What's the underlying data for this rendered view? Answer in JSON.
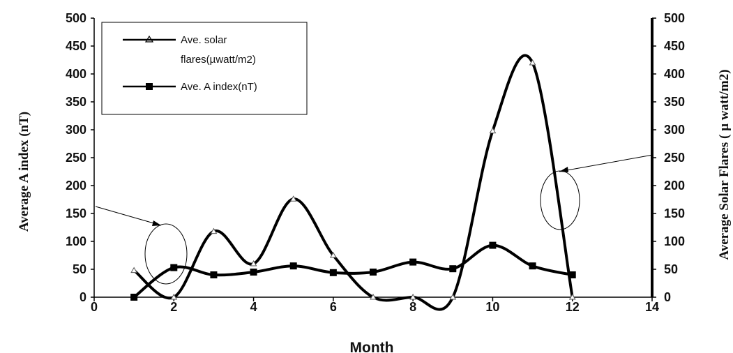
{
  "chart_data": {
    "type": "line",
    "title": "",
    "xlabel": "Month",
    "ylabel_left": "Average A index (nT)",
    "ylabel_right": "Average Solar Flares ( µ watt/m2)",
    "xlim": [
      0,
      14
    ],
    "ylim_left": [
      0,
      500
    ],
    "ylim_right": [
      0,
      500
    ],
    "x_ticks": [
      "0",
      "2",
      "4",
      "6",
      "8",
      "10",
      "12",
      "14"
    ],
    "y_ticks": [
      "0",
      "50",
      "100",
      "150",
      "200",
      "250",
      "300",
      "350",
      "400",
      "450",
      "500"
    ],
    "grid": false,
    "legend_position": "top-left",
    "series": [
      {
        "name": "Ave. solar flares(µwatt/m2)",
        "axis": "right",
        "marker": "triangle",
        "smooth": true,
        "x": [
          1,
          2,
          3,
          4,
          5,
          6,
          7,
          8,
          9,
          10,
          11,
          12
        ],
        "values": [
          48,
          0,
          118,
          60,
          176,
          75,
          0,
          0,
          0,
          298,
          420,
          0
        ]
      },
      {
        "name": "Ave. A index(nT)",
        "axis": "left",
        "marker": "square",
        "smooth": true,
        "x": [
          1,
          2,
          3,
          4,
          5,
          6,
          7,
          8,
          9,
          10,
          11,
          12
        ],
        "values": [
          0,
          53,
          40,
          45,
          56,
          44,
          45,
          63,
          51,
          93,
          56,
          40
        ]
      }
    ],
    "legend_lines": [
      [
        "Ave. solar",
        "flares(µwatt/m2)"
      ],
      [
        "Ave. A index(nT)"
      ]
    ],
    "colors": {
      "line": "#000000",
      "background": "#ffffff"
    }
  }
}
